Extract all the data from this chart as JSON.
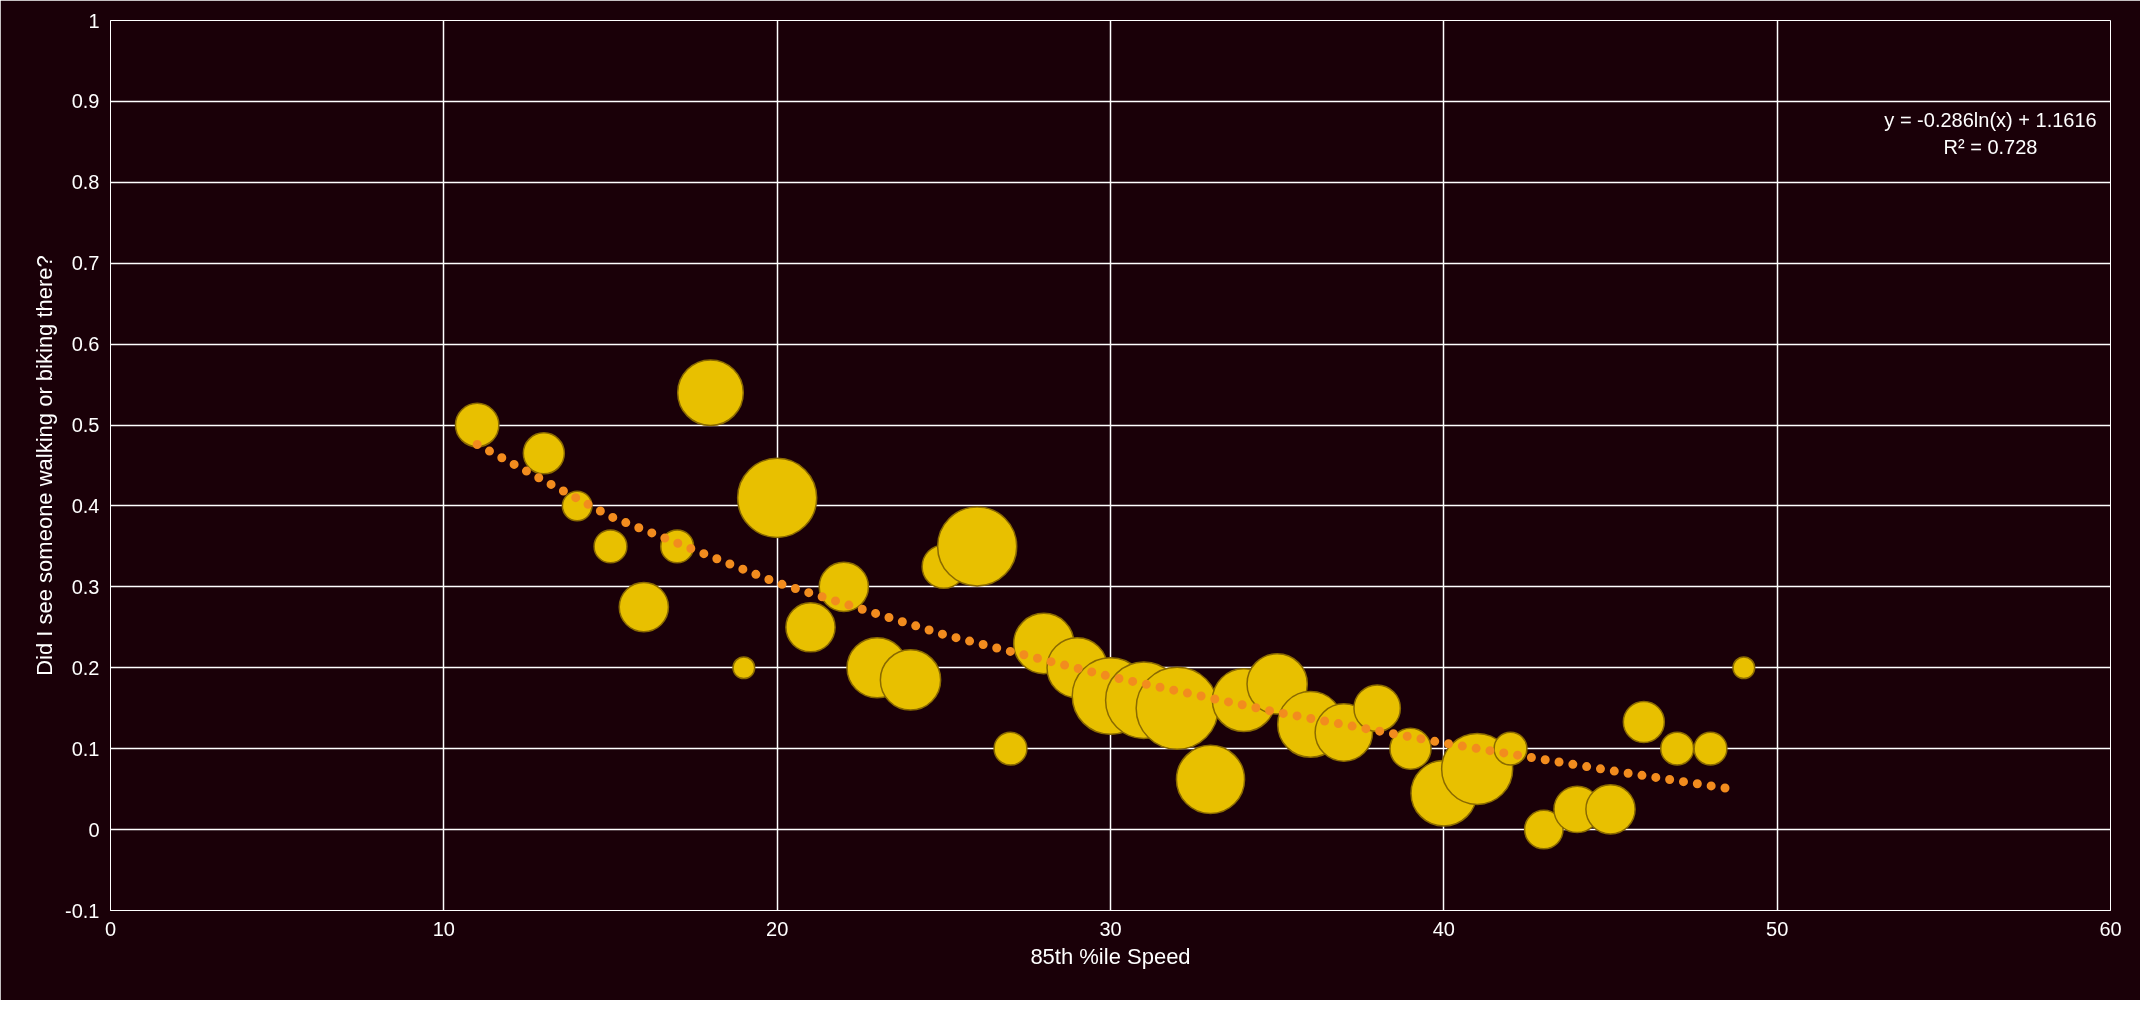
{
  "chart_data": {
    "type": "bubble",
    "xlabel": "85th %ile Speed",
    "ylabel": "Did I see someone walking or biking there?",
    "xlim": [
      0,
      60
    ],
    "xticks": [
      0,
      10,
      20,
      30,
      40,
      50,
      60
    ],
    "ylim": [
      -0.1,
      1
    ],
    "yticks": [
      -0.1,
      0,
      0.1,
      0.2,
      0.3,
      0.4,
      0.5,
      0.6,
      0.7,
      0.8,
      0.9,
      1
    ],
    "grid": true,
    "annotations": [
      "y = -0.286ln(x) + 1.1616",
      "R² = 0.728"
    ],
    "series": [
      {
        "color": "#e8c000",
        "x": [
          11,
          13,
          14,
          15,
          16,
          17,
          18,
          19,
          20,
          21,
          22,
          23,
          24,
          25,
          26,
          27,
          28,
          29,
          30,
          31,
          32,
          33,
          34,
          35,
          36,
          37,
          38,
          39,
          40,
          41,
          42,
          43,
          44,
          45,
          46,
          47,
          48,
          49
        ],
        "values": [
          0.5,
          0.465,
          0.4,
          0.35,
          0.275,
          0.35,
          0.54,
          0.2,
          0.41,
          0.25,
          0.3,
          0.2,
          0.185,
          0.325,
          0.35,
          0.1,
          0.23,
          0.2,
          0.165,
          0.16,
          0.15,
          0.062,
          0.16,
          0.18,
          0.13,
          0.12,
          0.15,
          0.1,
          0.045,
          0.075,
          0.1,
          0.0,
          0.025,
          0.025,
          0.133,
          0.1,
          0.1,
          0.2
        ],
        "sizes": [
          0.28,
          0.25,
          0.13,
          0.16,
          0.36,
          0.16,
          0.64,
          0.07,
          0.93,
          0.36,
          0.36,
          0.54,
          0.54,
          0.28,
          0.93,
          0.16,
          0.54,
          0.54,
          0.87,
          0.87,
          1,
          0.69,
          0.59,
          0.54,
          0.64,
          0.49,
          0.32,
          0.25,
          0.64,
          0.75,
          0.16,
          0.22,
          0.32,
          0.36,
          0.25,
          0.16,
          0.16,
          0.07
        ]
      },
      {
        "type": "line",
        "color": "#f28c1e",
        "line_style": "dotted",
        "x": [
          11,
          15,
          20,
          25,
          30,
          35,
          40,
          45,
          48.5
        ],
        "values": [
          0.476,
          0.387,
          0.305,
          0.241,
          0.189,
          0.145,
          0.107,
          0.073,
          0.051
        ]
      }
    ]
  }
}
